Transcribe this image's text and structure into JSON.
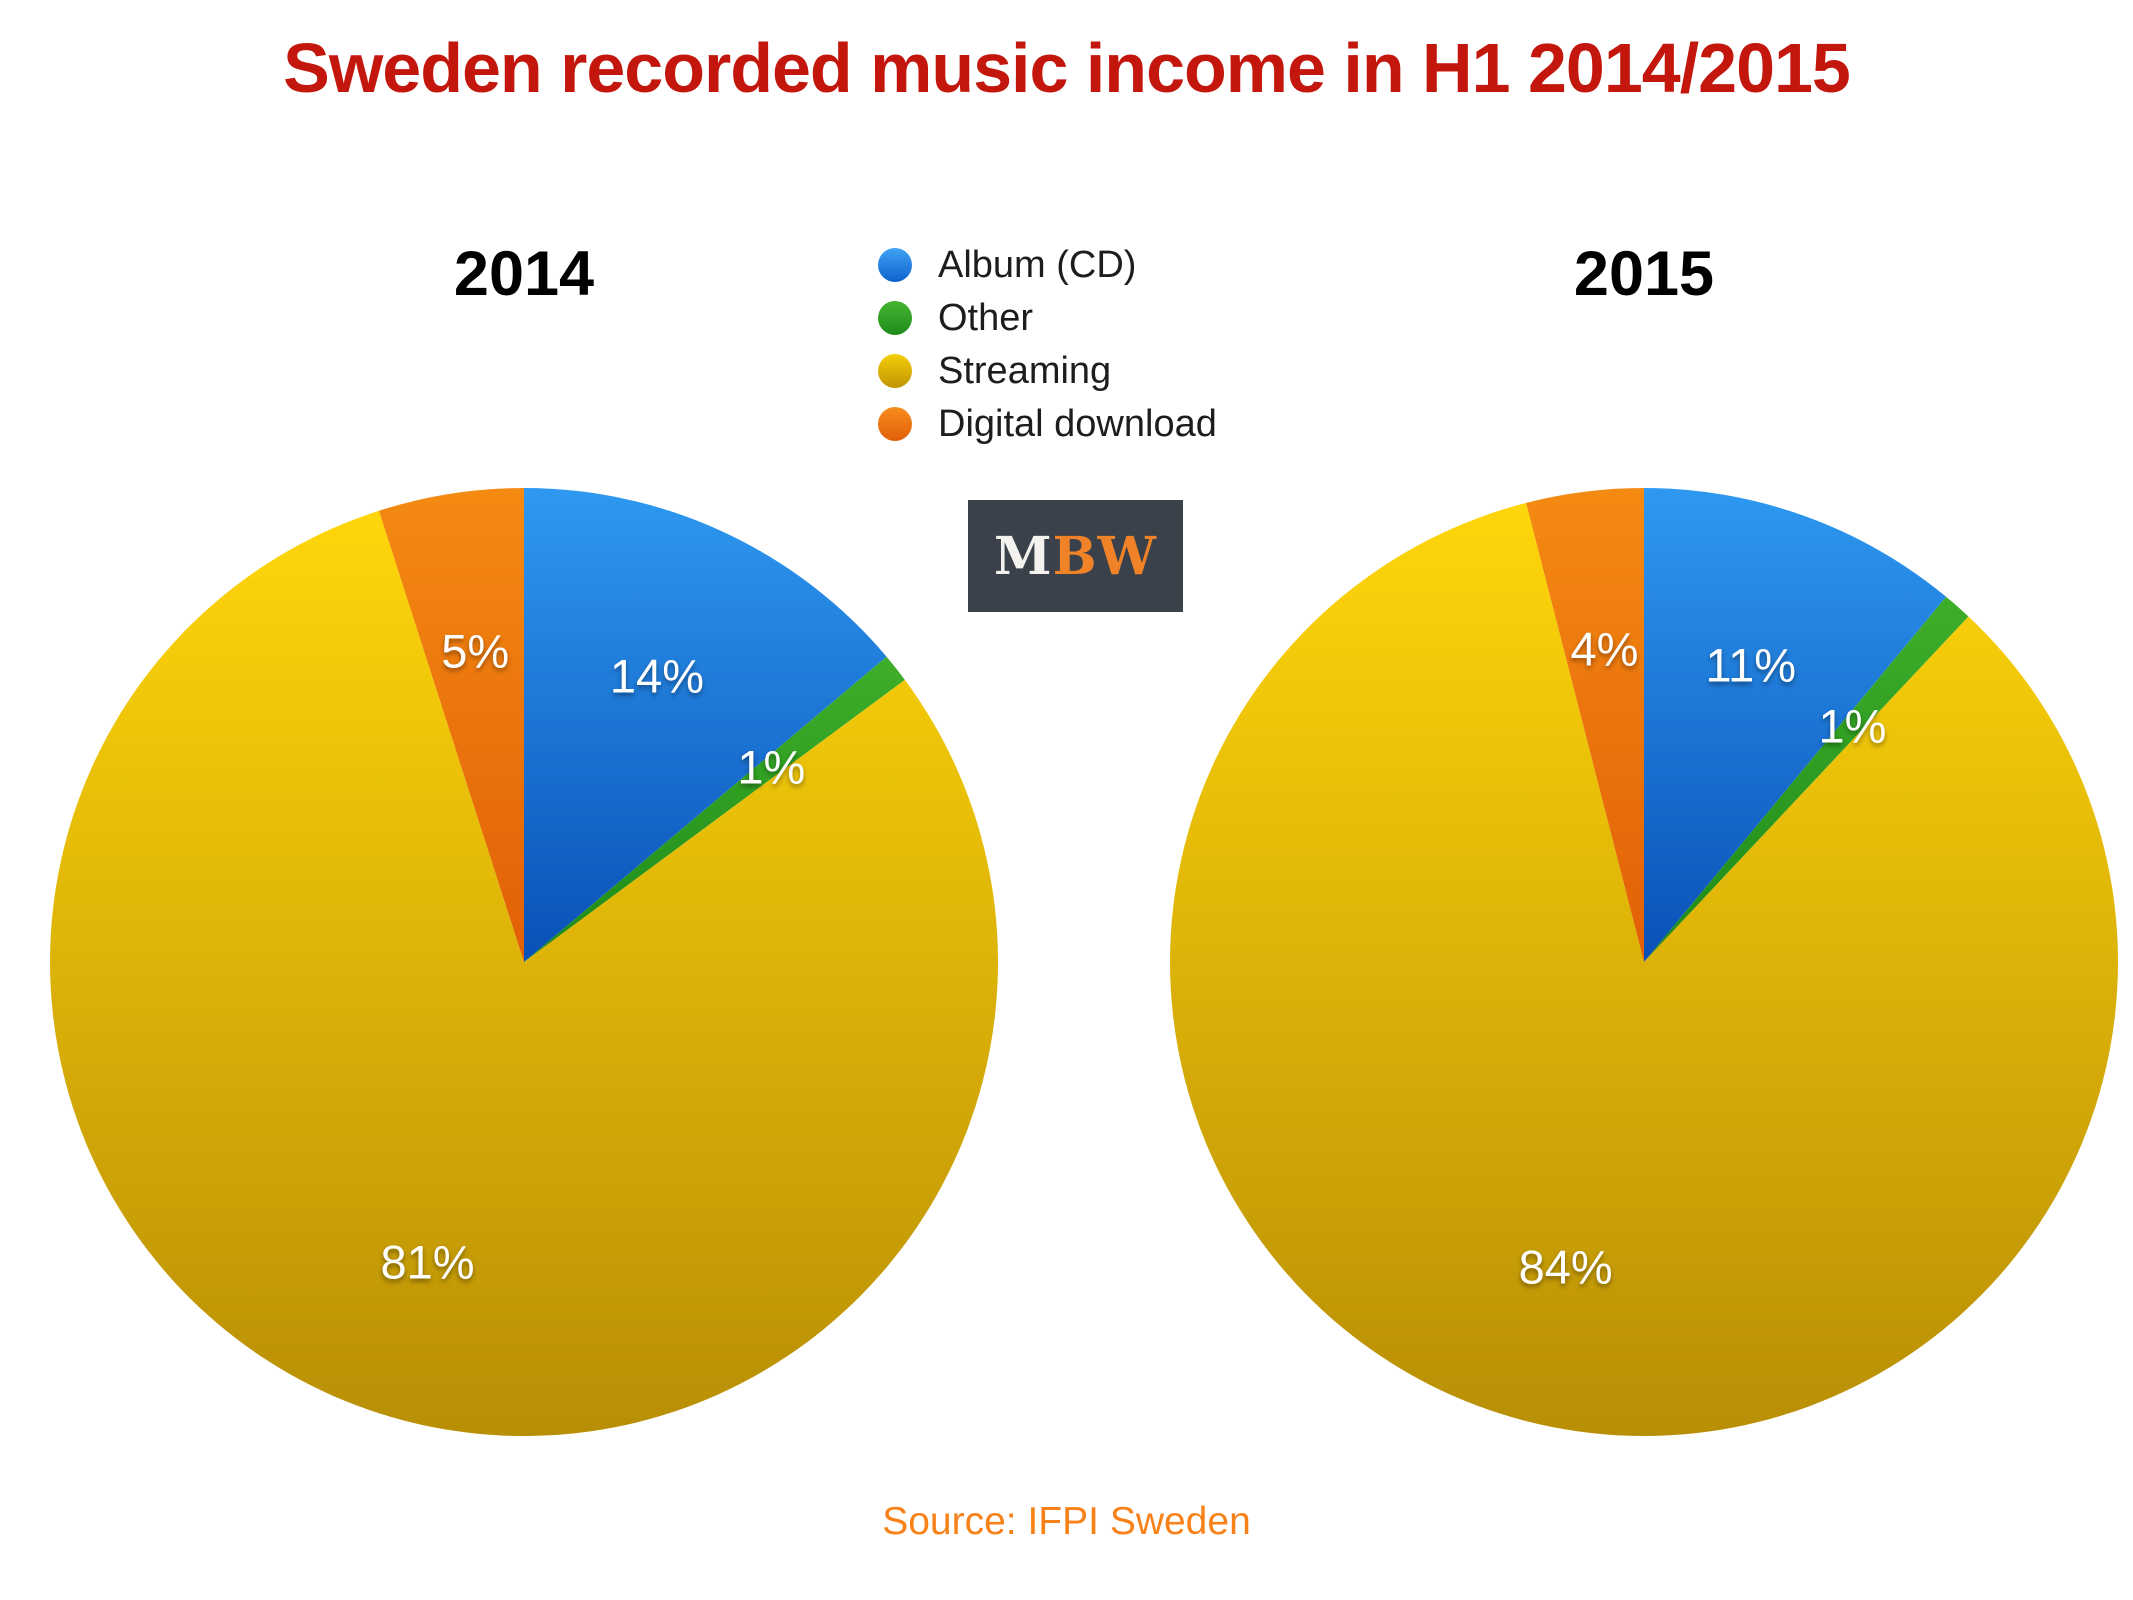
{
  "page": {
    "title": "Sweden recorded music income in H1 2014/2015",
    "source": "Source: IFPI Sweden"
  },
  "logo": {
    "m": "M",
    "bw": "BW"
  },
  "legend": [
    {
      "label": "Album (CD)"
    },
    {
      "label": "Other"
    },
    {
      "label": "Streaming"
    },
    {
      "label": "Digital download"
    }
  ],
  "colors": {
    "title": "#c3170d",
    "source": "#f8821a",
    "logo_bg": "#3a414b",
    "logo_m": "#f4f2ee",
    "logo_bw": "#f08228",
    "slice_gradients": [
      {
        "top": "#2e99f1",
        "bottom": "#0a50b6"
      },
      {
        "top": "#3fae2a",
        "bottom": "#1d8a18"
      },
      {
        "top": "#ffd60a",
        "bottom": "#b88e06"
      },
      {
        "top": "#f48a12",
        "bottom": "#e25f07"
      }
    ],
    "dot_gradients": [
      {
        "top": "#3fa2f4",
        "bottom": "#0f62cf"
      },
      {
        "top": "#46b430",
        "bottom": "#1f8c1b"
      },
      {
        "top": "#f5cf09",
        "bottom": "#c09404"
      },
      {
        "top": "#f68d1c",
        "bottom": "#e25e08"
      }
    ]
  },
  "chart_data": [
    {
      "type": "pie",
      "title": "2014",
      "categories": [
        "Album (CD)",
        "Other",
        "Streaming",
        "Digital download"
      ],
      "values": [
        14,
        1,
        81,
        5
      ],
      "value_labels": [
        "14%",
        "1%",
        "81%",
        "5%"
      ],
      "start_angle_deg": 0,
      "direction": "clockwise",
      "legend_position": "top-center-shared"
    },
    {
      "type": "pie",
      "title": "2015",
      "categories": [
        "Album (CD)",
        "Other",
        "Streaming",
        "Digital download"
      ],
      "values": [
        11,
        1,
        84,
        4
      ],
      "value_labels": [
        "11%",
        "1%",
        "84%",
        "4%"
      ],
      "start_angle_deg": 0,
      "direction": "clockwise",
      "legend_position": "top-center-shared"
    }
  ]
}
